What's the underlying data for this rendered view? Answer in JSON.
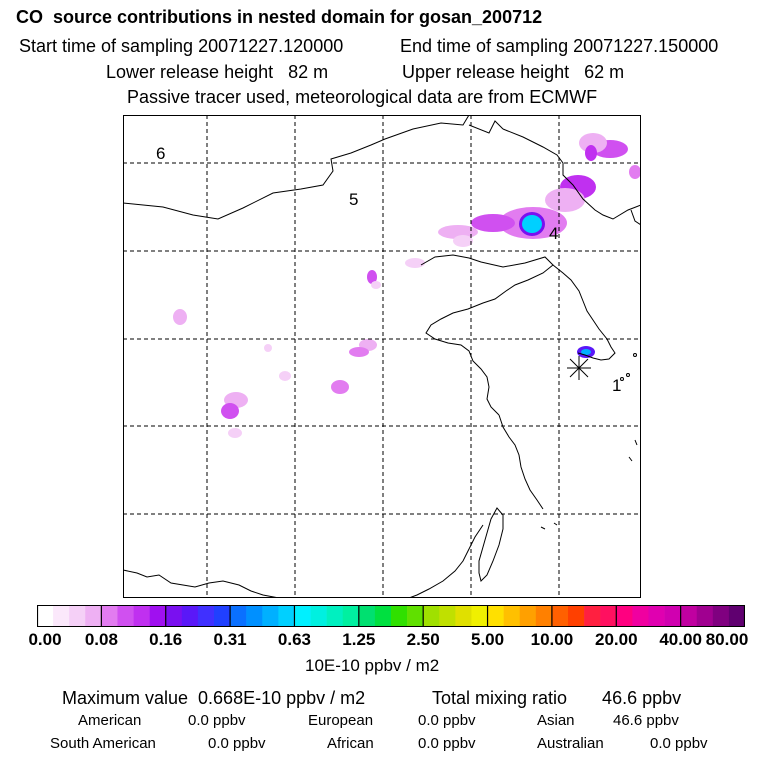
{
  "header": {
    "title": "CO  source contributions in nested domain for gosan_200712",
    "start_time": "Start time of sampling 20071227.120000",
    "end_time": "End time of sampling 20071227.150000",
    "lower_release": "Lower release height   82 m",
    "upper_release": "Upper release height   62 m",
    "tracer_note": "Passive tracer used, meteorological data are from ECMWF"
  },
  "map": {
    "region_labels": [
      "6",
      "5",
      "4",
      "1"
    ],
    "station_marker": "receptor-star-icon"
  },
  "colorbar": {
    "ticks": [
      "0.00",
      "0.08",
      "0.16",
      "0.31",
      "0.63",
      "1.25",
      "2.50",
      "5.00",
      "10.00",
      "20.00",
      "40.00",
      "80.00"
    ],
    "unit": "10E-10 ppbv / m2",
    "colors": [
      "#ffffff",
      "#fbe8fb",
      "#f5d0f7",
      "#eeb0f3",
      "#e27cf0",
      "#d050f0",
      "#c030f0",
      "#a010f0",
      "#7a10f0",
      "#5a18f8",
      "#4030ff",
      "#2040ff",
      "#0a70ff",
      "#0090ff",
      "#00b0ff",
      "#00d0ff",
      "#00f0ff",
      "#00f0e0",
      "#00f0c0",
      "#00f0a0",
      "#00e070",
      "#00e040",
      "#30e000",
      "#60e000",
      "#a0e000",
      "#c0e000",
      "#e0e000",
      "#f0f000",
      "#ffe000",
      "#ffc000",
      "#ffa000",
      "#ff8000",
      "#ff6000",
      "#ff4000",
      "#ff2040",
      "#ff1060",
      "#ff0080",
      "#f000a0",
      "#e000b0",
      "#d000b0",
      "#c000a0",
      "#a00090",
      "#800080",
      "#600070"
    ]
  },
  "stats": {
    "max_value": "Maximum value  0.668E-10 ppbv / m2",
    "total_mixing": "Total mixing ratio       46.6 ppbv",
    "american": "American",
    "american_val": "0.0 ppbv",
    "european": "European",
    "european_val": "0.0 ppbv",
    "asian": "Asian",
    "asian_val": "46.6 ppbv",
    "south_american": "South American",
    "south_american_val": "0.0 ppbv",
    "african": "African",
    "african_val": "0.0 ppbv",
    "australian": "Australian",
    "australian_val": "0.0 ppbv"
  }
}
